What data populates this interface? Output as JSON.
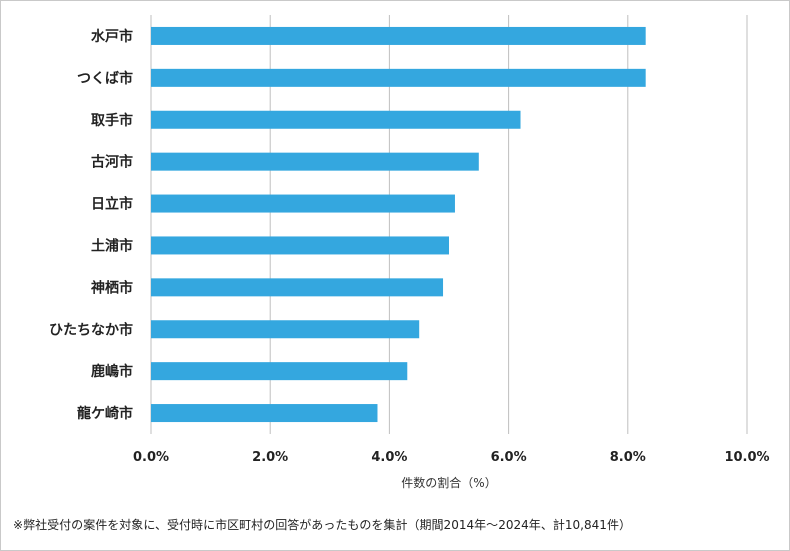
{
  "chart_data": {
    "type": "bar",
    "orientation": "horizontal",
    "categories": [
      "水戸市",
      "つくば市",
      "取手市",
      "古河市",
      "日立市",
      "土浦市",
      "神栖市",
      "ひたちなか市",
      "鹿嶋市",
      "龍ケ崎市"
    ],
    "values": [
      8.3,
      8.3,
      6.2,
      5.5,
      5.1,
      5.0,
      4.9,
      4.5,
      4.3,
      3.8
    ],
    "xlim": [
      0,
      10
    ],
    "xticks": [
      0,
      2,
      4,
      6,
      8,
      10
    ],
    "tick_labels": [
      "0.0%",
      "2.0%",
      "4.0%",
      "6.0%",
      "8.0%",
      "10.0%"
    ],
    "xlabel": "件数の割合（%）",
    "grid": true,
    "bar_color": "#34a7df",
    "grid_color": "#bfbfbf",
    "footnote": "※弊社受付の案件を対象に、受付時に市区町村の回答があったものを集計（期間2014年～2024年、計10,841件）"
  }
}
